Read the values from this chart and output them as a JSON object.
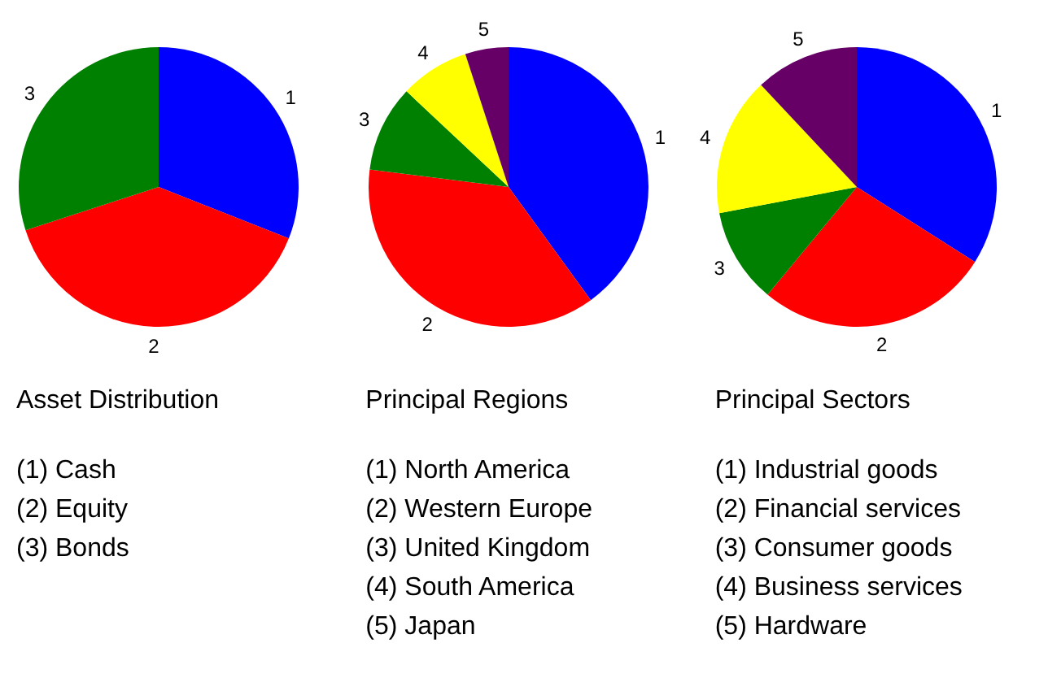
{
  "chart_data": [
    {
      "type": "pie",
      "title": "Asset Distribution",
      "categories": [
        "1",
        "2",
        "3"
      ],
      "values": [
        31,
        39,
        30
      ],
      "colors": [
        "#0000ff",
        "#ff0000",
        "#008000"
      ],
      "legend": false,
      "annotations": [
        "(1) Cash",
        "(2) Equity",
        "(3) Bonds"
      ]
    },
    {
      "type": "pie",
      "title": "Principal Regions",
      "categories": [
        "1",
        "2",
        "3",
        "4",
        "5"
      ],
      "values": [
        40,
        37,
        10,
        8,
        5
      ],
      "colors": [
        "#0000ff",
        "#ff0000",
        "#008000",
        "#ffff00",
        "#660066"
      ],
      "legend": false,
      "annotations": [
        "(1) North America",
        "(2) Western Europe",
        "(3) United Kingdom",
        "(4) South America",
        "(5) Japan"
      ]
    },
    {
      "type": "pie",
      "title": "Principal Sectors",
      "categories": [
        "1",
        "2",
        "3",
        "4",
        "5"
      ],
      "values": [
        34,
        27,
        11,
        16,
        12
      ],
      "colors": [
        "#0000ff",
        "#ff0000",
        "#008000",
        "#ffff00",
        "#660066"
      ],
      "legend": false,
      "annotations": [
        "(1) Industrial goods",
        "(2) Financial services",
        "(3) Consumer goods",
        "(4) Business services",
        "(5) Hardware"
      ]
    }
  ]
}
